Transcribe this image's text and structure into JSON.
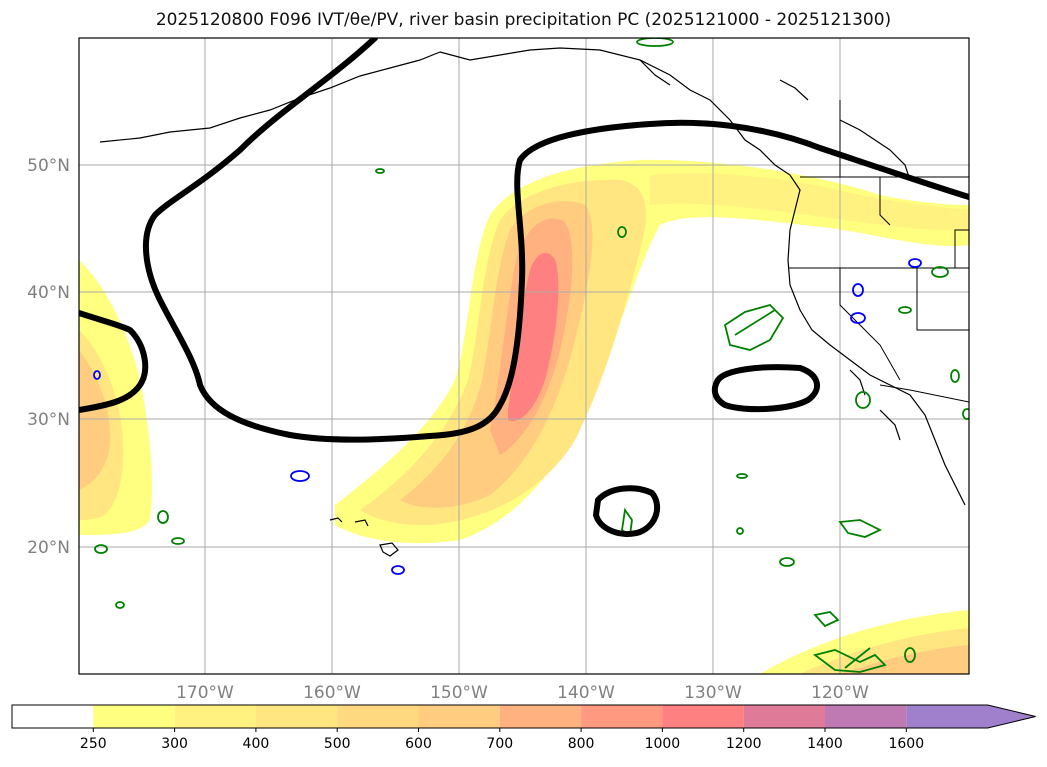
{
  "title": "2025120800 F096 IVT/θe/PV, river basin precipitation PC (2025121000 - 2025121300)",
  "map": {
    "lat_labels": [
      "50°N",
      "40°N",
      "30°N",
      "20°N"
    ],
    "lon_labels": [
      "170°W",
      "160°W",
      "150°W",
      "140°W",
      "130°W",
      "120°W"
    ],
    "label_color": "#808080"
  },
  "colorbar": {
    "levels": [
      "250",
      "300",
      "400",
      "500",
      "600",
      "700",
      "800",
      "1000",
      "1200",
      "1400",
      "1600"
    ],
    "colors": [
      "#ffff80",
      "#fff280",
      "#ffe680",
      "#ffd980",
      "#ffcc80",
      "#ffb280",
      "#ff9980",
      "#ff8080",
      "#e07a99",
      "#c07ab3",
      "#a080cc"
    ],
    "extend": "max"
  },
  "legend_colors": {
    "ivt_fill": "#ffff80",
    "theta_e_contour": "#000000",
    "pv_contour": "#008000",
    "precip_contour": "#0000ff"
  }
}
